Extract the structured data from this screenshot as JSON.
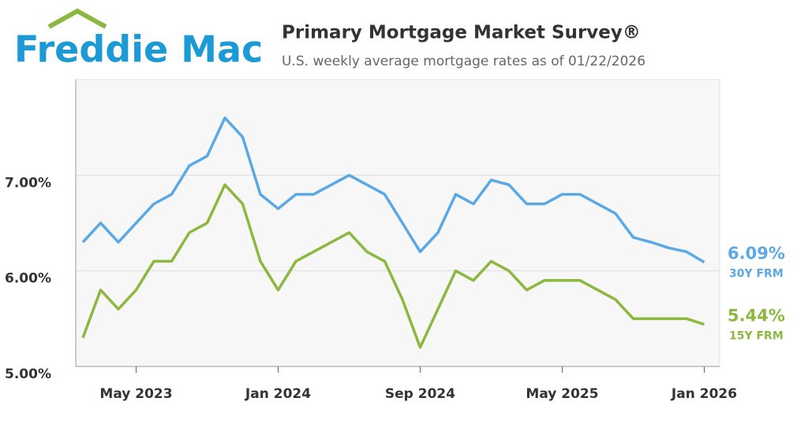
{
  "logo": {
    "text": "Freddie Mac"
  },
  "chart_data": {
    "type": "line",
    "title": "Primary Mortgage Market Survey®",
    "subtitle": "U.S. weekly average mortgage rates as of 01/22/2026",
    "x": [
      "Feb 2023",
      "Mar 2023",
      "Apr 2023",
      "May 2023",
      "Jun 2023",
      "Jul 2023",
      "Aug 2023",
      "Sep 2023",
      "Oct 2023",
      "Nov 2023",
      "Dec 2023",
      "Jan 2024",
      "Feb 2024",
      "Mar 2024",
      "Apr 2024",
      "May 2024",
      "Jun 2024",
      "Jul 2024",
      "Aug 2024",
      "Sep 2024",
      "Oct 2024",
      "Nov 2024",
      "Dec 2024",
      "Jan 2025",
      "Feb 2025",
      "Mar 2025",
      "Apr 2025",
      "May 2025",
      "Jun 2025",
      "Jul 2025",
      "Aug 2025",
      "Sep 2025",
      "Oct 2025",
      "Nov 2025",
      "Dec 2025",
      "Jan 2026"
    ],
    "series": [
      {
        "name": "30Y FRM",
        "color": "#5aa9e6",
        "end_label": "6.09%",
        "values": [
          6.3,
          6.5,
          6.3,
          6.5,
          6.7,
          6.8,
          7.1,
          7.2,
          7.6,
          7.4,
          6.8,
          6.65,
          6.8,
          6.8,
          6.9,
          7.0,
          6.9,
          6.8,
          6.5,
          6.2,
          6.4,
          6.8,
          6.7,
          6.95,
          6.9,
          6.7,
          6.7,
          6.8,
          6.8,
          6.7,
          6.6,
          6.35,
          6.3,
          6.24,
          6.2,
          6.09
        ]
      },
      {
        "name": "15Y FRM",
        "color": "#8db83f",
        "end_label": "5.44%",
        "values": [
          5.3,
          5.8,
          5.6,
          5.8,
          6.1,
          6.1,
          6.4,
          6.5,
          6.9,
          6.7,
          6.1,
          5.8,
          6.1,
          6.2,
          6.3,
          6.4,
          6.2,
          6.1,
          5.7,
          5.2,
          5.6,
          6.0,
          5.9,
          6.1,
          6.0,
          5.8,
          5.9,
          5.9,
          5.9,
          5.8,
          5.7,
          5.5,
          5.5,
          5.5,
          5.5,
          5.44
        ]
      }
    ],
    "ylim": [
      5,
      8
    ],
    "yticks": [
      {
        "value": 5,
        "label": "5.00%"
      },
      {
        "value": 6,
        "label": "6.00%"
      },
      {
        "value": 7,
        "label": "7.00%"
      }
    ],
    "xticks": [
      "May 2023",
      "Jan 2024",
      "Sep 2024",
      "May 2025",
      "Jan 2026"
    ],
    "grid": true
  }
}
